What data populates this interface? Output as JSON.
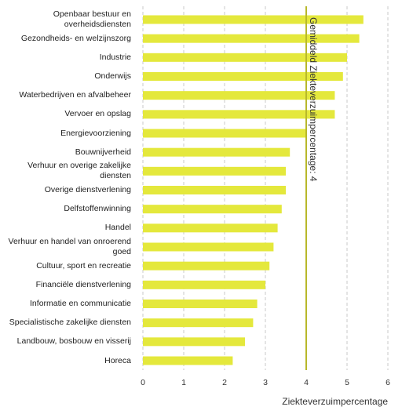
{
  "chart_data": {
    "type": "bar",
    "orientation": "horizontal",
    "categories": [
      "Openbaar bestuur en overheidsdiensten",
      "Gezondheids- en welzijnszorg",
      "Industrie",
      "Onderwijs",
      "Waterbedrijven en afvalbeheer",
      "Vervoer en opslag",
      "Energievoorziening",
      "Bouwnijverheid",
      "Verhuur en overige zakelijke diensten",
      "Overige dienstverlening",
      "Delfstoffenwinning",
      "Handel",
      "Verhuur en handel van onroerend goed",
      "Cultuur, sport en recreatie",
      "Financiële dienstverlening",
      "Informatie en communicatie",
      "Specialistische zakelijke diensten",
      "Landbouw, bosbouw en visserij",
      "Horeca"
    ],
    "values": [
      5.4,
      5.3,
      5.0,
      4.9,
      4.7,
      4.7,
      4.0,
      3.6,
      3.5,
      3.5,
      3.4,
      3.3,
      3.2,
      3.1,
      3.0,
      2.8,
      2.7,
      2.5,
      2.2
    ],
    "color": "#e4e83c",
    "xlim": [
      0,
      6
    ],
    "xticks": [
      0,
      1,
      2,
      3,
      4,
      5,
      6
    ],
    "grid": true,
    "x_label": "Ziekteverzuimpercentage",
    "reference_line": {
      "value": 4,
      "label": "Gemiddeld Ziekteverzuimpercentage: 4",
      "color": "#b8b82a"
    }
  }
}
